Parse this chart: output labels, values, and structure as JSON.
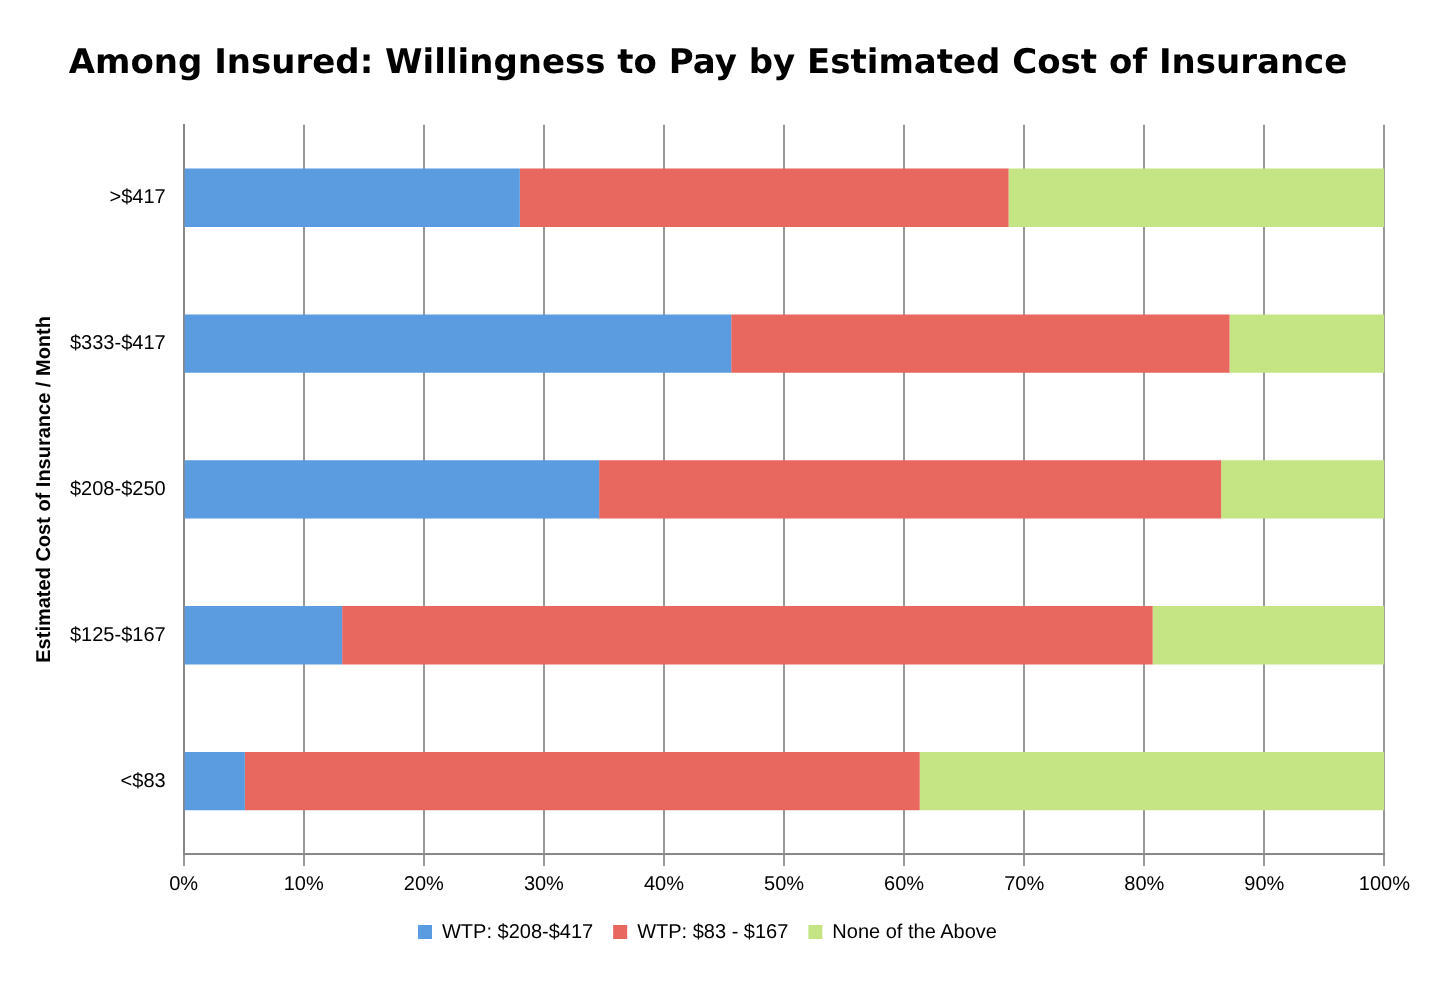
{
  "chart_data": {
    "type": "bar",
    "orientation": "horizontal",
    "stacked": true,
    "title": "Among Insured: Willingness to Pay by Estimated Cost of Insurance",
    "ylabel": "Estimated Cost of Insurance / Month",
    "categories": [
      ">$417",
      "$333-$417",
      "$208-$250",
      "$125-$167",
      "<$83"
    ],
    "series": [
      {
        "name": "WTP: $208-$417",
        "color": "#5b9bdf",
        "values": [
          28.0,
          45.6,
          34.6,
          13.2,
          5.1
        ]
      },
      {
        "name": "WTP: $83 - $167",
        "color": "#e8675e",
        "values": [
          40.7,
          41.5,
          51.8,
          67.5,
          56.2
        ]
      },
      {
        "name": "None of the Above",
        "color": "#c5e585",
        "values": [
          31.3,
          12.9,
          13.6,
          19.3,
          38.7
        ]
      }
    ],
    "xlim": [
      0,
      100
    ],
    "xticks": [
      {
        "value": 0,
        "label": "0%"
      },
      {
        "value": 10,
        "label": "10%"
      },
      {
        "value": 20,
        "label": "20%"
      },
      {
        "value": 30,
        "label": "30%"
      },
      {
        "value": 40,
        "label": "40%"
      },
      {
        "value": 50,
        "label": "50%"
      },
      {
        "value": 60,
        "label": "60%"
      },
      {
        "value": 70,
        "label": "70%"
      },
      {
        "value": 80,
        "label": "80%"
      },
      {
        "value": 90,
        "label": "90%"
      },
      {
        "value": 100,
        "label": "100%"
      }
    ],
    "grid": "x",
    "legend": "bottom"
  }
}
